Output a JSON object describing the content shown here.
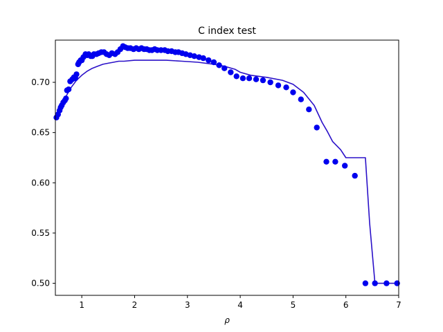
{
  "chart_data": {
    "type": "scatter",
    "title": "C index test",
    "xlabel": "ρ",
    "ylabel": "",
    "xlim": [
      0.5,
      7.0
    ],
    "ylim": [
      0.488,
      0.742
    ],
    "xticks": [
      1,
      2,
      3,
      4,
      5,
      6,
      7
    ],
    "xtick_labels": [
      "1",
      "2",
      "3",
      "4",
      "5",
      "6",
      "7"
    ],
    "yticks": [
      0.5,
      0.55,
      0.6,
      0.65,
      0.7
    ],
    "ytick_labels": [
      "0.50",
      "0.55",
      "0.60",
      "0.65",
      "0.70"
    ],
    "grid": false,
    "legend": "none",
    "colors": {
      "points": "#0000ee",
      "line": "#2a10c8"
    },
    "series": [
      {
        "kind": "scatter",
        "x": [
          0.52,
          0.55,
          0.58,
          0.6,
          0.62,
          0.65,
          0.68,
          0.7,
          0.72,
          0.75,
          0.78,
          0.82,
          0.85,
          0.88,
          0.9,
          0.93,
          0.95,
          0.98,
          1.0,
          1.03,
          1.07,
          1.1,
          1.13,
          1.17,
          1.2,
          1.23,
          1.28,
          1.32,
          1.37,
          1.42,
          1.47,
          1.52,
          1.57,
          1.63,
          1.68,
          1.73,
          1.78,
          1.82,
          1.87,
          1.92,
          1.98,
          2.03,
          2.08,
          2.13,
          2.18,
          2.23,
          2.28,
          2.33,
          2.38,
          2.43,
          2.5,
          2.57,
          2.63,
          2.7,
          2.77,
          2.83,
          2.9,
          2.97,
          3.05,
          3.13,
          3.22,
          3.3,
          3.4,
          3.5,
          3.6,
          3.7,
          3.82,
          3.93,
          4.05,
          4.17,
          4.3,
          4.43,
          4.57,
          4.72,
          4.87,
          5.0,
          5.15,
          5.3,
          5.45,
          5.63,
          5.8,
          5.98,
          6.17,
          6.37,
          6.55,
          6.77,
          6.97
        ],
        "y": [
          0.665,
          0.668,
          0.672,
          0.675,
          0.677,
          0.68,
          0.682,
          0.684,
          0.692,
          0.693,
          0.701,
          0.703,
          0.705,
          0.704,
          0.708,
          0.718,
          0.72,
          0.722,
          0.722,
          0.725,
          0.728,
          0.727,
          0.728,
          0.726,
          0.726,
          0.728,
          0.728,
          0.729,
          0.73,
          0.73,
          0.728,
          0.727,
          0.729,
          0.728,
          0.73,
          0.733,
          0.736,
          0.735,
          0.734,
          0.734,
          0.733,
          0.734,
          0.733,
          0.734,
          0.733,
          0.733,
          0.732,
          0.732,
          0.733,
          0.732,
          0.732,
          0.732,
          0.731,
          0.731,
          0.73,
          0.73,
          0.729,
          0.728,
          0.727,
          0.726,
          0.725,
          0.724,
          0.722,
          0.72,
          0.717,
          0.714,
          0.71,
          0.706,
          0.704,
          0.704,
          0.703,
          0.702,
          0.7,
          0.697,
          0.695,
          0.69,
          0.683,
          0.673,
          0.655,
          0.621,
          0.621,
          0.617,
          0.607,
          0.5,
          0.5,
          0.5,
          0.5
        ]
      },
      {
        "kind": "line",
        "x": [
          0.5,
          0.6,
          0.7,
          0.8,
          0.9,
          1.0,
          1.1,
          1.2,
          1.3,
          1.4,
          1.5,
          1.6,
          1.7,
          1.8,
          2.0,
          2.3,
          2.6,
          2.9,
          3.2,
          3.5,
          3.7,
          3.9,
          4.0,
          4.2,
          4.5,
          4.8,
          5.0,
          5.2,
          5.4,
          5.55,
          5.65,
          5.75,
          5.9,
          6.0,
          6.2,
          6.37,
          6.45,
          6.55,
          6.97
        ],
        "y": [
          0.666,
          0.676,
          0.686,
          0.695,
          0.702,
          0.707,
          0.711,
          0.714,
          0.716,
          0.718,
          0.719,
          0.72,
          0.721,
          0.721,
          0.722,
          0.722,
          0.722,
          0.721,
          0.72,
          0.718,
          0.716,
          0.713,
          0.71,
          0.707,
          0.705,
          0.702,
          0.698,
          0.69,
          0.677,
          0.66,
          0.651,
          0.641,
          0.633,
          0.625,
          0.625,
          0.625,
          0.56,
          0.5,
          0.5
        ]
      }
    ]
  }
}
